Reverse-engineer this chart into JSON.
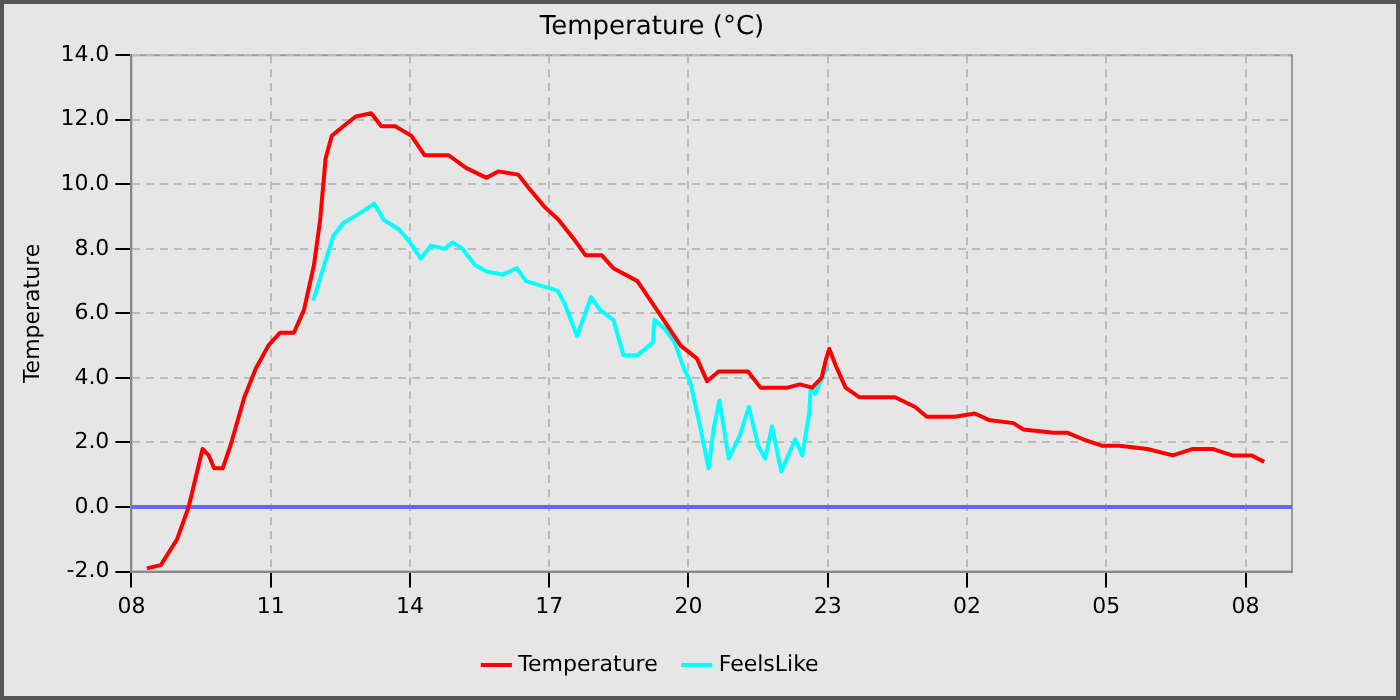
{
  "chart_data": {
    "type": "line",
    "title": "Temperature (°C)",
    "ylabel": "Temperature",
    "xlim": [
      "--01-01T08:00",
      "--01-02T09:00"
    ],
    "xticks": [
      {
        "value": "--01-01T08:00",
        "label": "08"
      },
      {
        "value": "--01-01T11:00",
        "label": "11"
      },
      {
        "value": "--01-01T14:00",
        "label": "14"
      },
      {
        "value": "--01-01T17:00",
        "label": "17"
      },
      {
        "value": "--01-01T20:00",
        "label": "20"
      },
      {
        "value": "--01-01T23:00",
        "label": "23"
      },
      {
        "value": "--01-02T02:00",
        "label": "02"
      },
      {
        "value": "--01-02T05:00",
        "label": "05"
      },
      {
        "value": "--01-02T08:00",
        "label": "08"
      }
    ],
    "ylim": [
      -2,
      14
    ],
    "yticks": [
      {
        "value": -2,
        "label": "-2.0"
      },
      {
        "value": 0,
        "label": "0.0"
      },
      {
        "value": 2,
        "label": "2.0"
      },
      {
        "value": 4,
        "label": "4.0"
      },
      {
        "value": 6,
        "label": "6.0"
      },
      {
        "value": 8,
        "label": "8.0"
      },
      {
        "value": 10,
        "label": "10.0"
      },
      {
        "value": 12,
        "label": "12.0"
      },
      {
        "value": 14,
        "label": "14.0"
      }
    ],
    "grid": true,
    "legend": "bottom",
    "marker": "none",
    "line_style": "solid",
    "ref_lines": [
      {
        "axis": "y",
        "value": 0,
        "color": "#6666ff"
      }
    ],
    "series": [
      {
        "name": "Temperature",
        "color": "#ff0000",
        "x": [
          "--01-01T08:20",
          "--01-01T08:38",
          "--01-01T08:59",
          "--01-01T09:14",
          "--01-01T09:25",
          "--01-01T09:32",
          "--01-01T09:40",
          "--01-01T09:47",
          "--01-01T09:58",
          "--01-01T10:08",
          "--01-01T10:26",
          "--01-01T10:41",
          "--01-01T10:57",
          "--01-01T11:12",
          "--01-01T11:30",
          "--01-01T11:43",
          "--01-01T11:56",
          "--01-01T12:04",
          "--01-01T12:11",
          "--01-01T12:19",
          "--01-01T12:34",
          "--01-01T12:50",
          "--01-01T13:10",
          "--01-01T13:23",
          "--01-01T13:41",
          "--01-01T14:02",
          "--01-01T14:19",
          "--01-01T14:50",
          "--01-01T15:13",
          "--01-01T15:39",
          "--01-01T15:54",
          "--01-01T16:20",
          "--01-01T16:33",
          "--01-01T16:54",
          "--01-01T17:12",
          "--01-01T17:32",
          "--01-01T17:47",
          "--01-01T18:08",
          "--01-01T18:23",
          "--01-01T18:54",
          "--01-01T19:25",
          "--01-01T19:50",
          "--01-01T20:11",
          "--01-01T20:24",
          "--01-01T20:39",
          "--01-01T21:17",
          "--01-01T21:33",
          "--01-01T22:08",
          "--01-01T22:24",
          "--01-01T22:40",
          "--01-01T22:52",
          "--01-01T22:58",
          "--01-01T23:02",
          "--01-01T23:10",
          "--01-01T23:23",
          "--01-01T23:41",
          "--01-02T00:27",
          "--01-02T00:53",
          "--01-02T01:08",
          "--01-02T01:44",
          "--01-02T02:10",
          "--01-02T02:28",
          "--01-02T03:00",
          "--01-02T03:13",
          "--01-02T03:52",
          "--01-02T04:10",
          "--01-02T04:30",
          "--01-02T04:54",
          "--01-02T05:17",
          "--01-02T05:53",
          "--01-02T06:26",
          "--01-02T06:52",
          "--01-02T07:17",
          "--01-02T07:43",
          "--01-02T08:08",
          "--01-02T08:24"
        ],
        "values": [
          -1.9,
          -1.8,
          -1.0,
          0.0,
          1.1,
          1.8,
          1.6,
          1.2,
          1.2,
          1.9,
          3.4,
          4.3,
          5.0,
          5.4,
          5.4,
          6.1,
          7.5,
          8.9,
          10.8,
          11.5,
          11.8,
          12.1,
          12.2,
          11.8,
          11.8,
          11.5,
          10.9,
          10.9,
          10.5,
          10.2,
          10.4,
          10.3,
          9.9,
          9.3,
          8.9,
          8.3,
          7.8,
          7.8,
          7.4,
          7.0,
          5.9,
          5.0,
          4.6,
          3.9,
          4.2,
          4.2,
          3.7,
          3.7,
          3.8,
          3.7,
          4.0,
          4.6,
          4.9,
          4.4,
          3.7,
          3.4,
          3.4,
          3.1,
          2.8,
          2.8,
          2.9,
          2.7,
          2.6,
          2.4,
          2.3,
          2.3,
          2.1,
          1.9,
          1.9,
          1.8,
          1.6,
          1.8,
          1.8,
          1.6,
          1.6,
          1.4
        ]
      },
      {
        "name": "FeelsLike",
        "color": "#00ffff",
        "x": [
          "--01-01T11:55",
          "--01-01T12:21",
          "--01-01T12:34",
          "--01-01T12:55",
          "--01-01T13:14",
          "--01-01T13:26",
          "--01-01T13:46",
          "--01-01T14:00",
          "--01-01T14:14",
          "--01-01T14:27",
          "--01-01T14:45",
          "--01-01T14:55",
          "--01-01T15:08",
          "--01-01T15:24",
          "--01-01T15:39",
          "--01-01T16:00",
          "--01-01T16:18",
          "--01-01T16:30",
          "--01-01T16:58",
          "--01-01T17:11",
          "--01-01T17:20",
          "--01-01T17:36",
          "--01-01T17:54",
          "--01-01T18:06",
          "--01-01T18:23",
          "--01-01T18:36",
          "--01-01T18:54",
          "--01-01T19:14",
          "--01-01T19:16",
          "--01-01T19:30",
          "--01-01T19:42",
          "--01-01T19:54",
          "--01-01T20:02",
          "--01-01T20:15",
          "--01-01T20:26",
          "--01-01T20:33",
          "--01-01T20:40",
          "--01-01T20:52",
          "--01-01T21:06",
          "--01-01T21:18",
          "--01-01T21:30",
          "--01-01T21:39",
          "--01-01T21:48",
          "--01-01T22:00",
          "--01-01T22:18",
          "--01-01T22:27",
          "--01-01T22:36",
          "--01-01T22:38",
          "--01-01T22:44",
          "--01-01T22:58"
        ],
        "values": [
          6.4,
          8.4,
          8.8,
          9.1,
          9.4,
          8.9,
          8.6,
          8.2,
          7.7,
          8.1,
          8.0,
          8.2,
          8.0,
          7.5,
          7.3,
          7.2,
          7.4,
          7.0,
          6.8,
          6.7,
          6.3,
          5.3,
          6.5,
          6.1,
          5.8,
          4.7,
          4.7,
          5.1,
          5.8,
          5.5,
          5.1,
          4.3,
          3.9,
          2.5,
          1.2,
          2.5,
          3.3,
          1.5,
          2.2,
          3.1,
          1.9,
          1.5,
          2.5,
          1.1,
          2.1,
          1.6,
          2.9,
          3.7,
          3.5,
          4.3
        ]
      }
    ]
  }
}
